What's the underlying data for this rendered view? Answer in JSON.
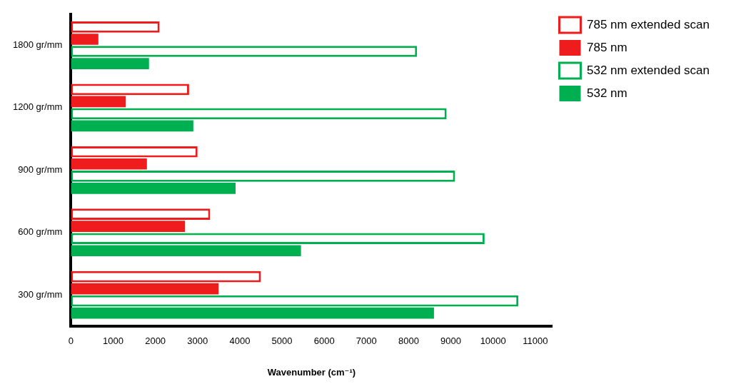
{
  "chart_data": {
    "type": "bar",
    "orientation": "horizontal",
    "categories": [
      "1800 gr/mm",
      "1200 gr/mm",
      "900 gr/mm",
      "600 gr/mm",
      "300 gr/mm"
    ],
    "xlabel": "Wavenumber (cm⁻¹)",
    "xlim": [
      0,
      11400
    ],
    "xticks": [
      0,
      1000,
      2000,
      3000,
      4000,
      5000,
      6000,
      7000,
      8000,
      9000,
      10000,
      11000
    ],
    "grid": false,
    "legend": "right",
    "series": [
      {
        "name": "785 nm extended scan",
        "color": "#ee1c1c",
        "marker": "hollow",
        "values": [
          2100,
          2800,
          3000,
          3300,
          4500
        ]
      },
      {
        "name": "785 nm",
        "color": "#ee1c1c",
        "marker": "filled",
        "values": [
          650,
          1300,
          1800,
          2700,
          3500
        ]
      },
      {
        "name": "532 nm extended scan",
        "color": "#00b050",
        "marker": "hollow",
        "values": [
          8200,
          8900,
          9100,
          9800,
          10600
        ]
      },
      {
        "name": "532 nm",
        "color": "#00b050",
        "marker": "filled",
        "values": [
          1850,
          2900,
          3900,
          5450,
          8600
        ]
      }
    ]
  }
}
